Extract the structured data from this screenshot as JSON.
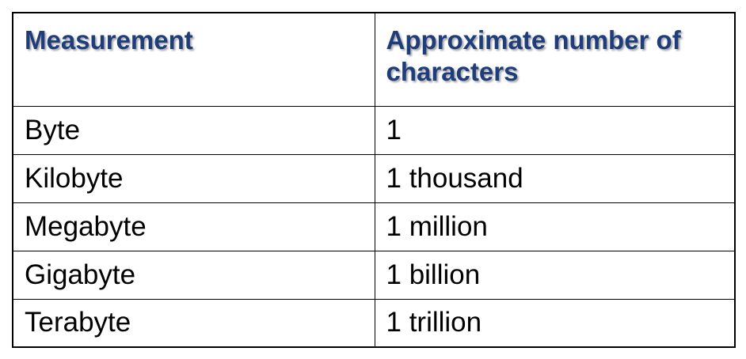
{
  "table": {
    "headers": [
      "Measurement",
      "Approximate number of characters"
    ],
    "rows": [
      [
        "Byte",
        "1"
      ],
      [
        "Kilobyte",
        "1 thousand"
      ],
      [
        "Megabyte",
        "1 million"
      ],
      [
        "Gigabyte",
        "1 billion"
      ],
      [
        "Terabyte",
        "1 trillion"
      ]
    ]
  },
  "colors": {
    "header_text": "#1f3d7a",
    "body_text": "#000000",
    "border": "#000000"
  }
}
